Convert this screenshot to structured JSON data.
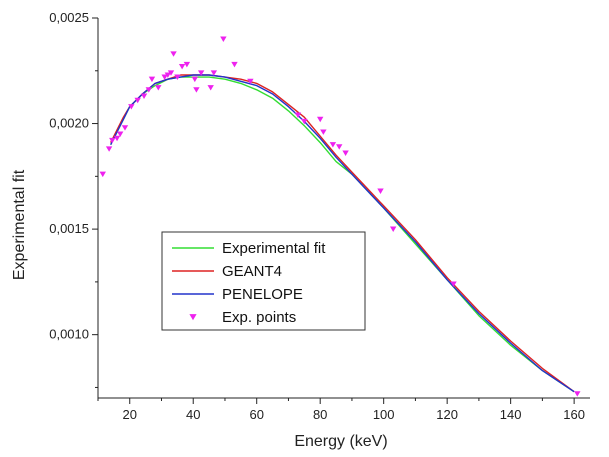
{
  "chart_data": {
    "type": "line",
    "title": "",
    "xlabel": "Energy (keV)",
    "ylabel": "Experimental fit",
    "xlim": [
      10,
      165
    ],
    "ylim": [
      0.0007,
      0.0025
    ],
    "x_ticks": [
      20,
      40,
      60,
      80,
      100,
      120,
      140,
      160
    ],
    "x_tick_labels": [
      "20",
      "40",
      "60",
      "80",
      "100",
      "120",
      "140",
      "160"
    ],
    "y_ticks": [
      0.001,
      0.0015,
      0.002,
      0.0025
    ],
    "y_tick_labels": [
      "0,0010",
      "0,0015",
      "0,0020",
      "0,0025"
    ],
    "grid": false,
    "legend_position": "center-left",
    "series": [
      {
        "name": "Experimental fit",
        "kind": "line",
        "color": "#33dd33",
        "points": [
          [
            14,
            0.0019
          ],
          [
            16,
            0.00196
          ],
          [
            18,
            0.00202
          ],
          [
            20,
            0.00208
          ],
          [
            24,
            0.00214
          ],
          [
            28,
            0.00218
          ],
          [
            32,
            0.00221
          ],
          [
            36,
            0.00222
          ],
          [
            40,
            0.00222
          ],
          [
            45,
            0.00222
          ],
          [
            50,
            0.00221
          ],
          [
            55,
            0.00219
          ],
          [
            60,
            0.00216
          ],
          [
            65,
            0.00212
          ],
          [
            70,
            0.00206
          ],
          [
            75,
            0.00199
          ],
          [
            80,
            0.00191
          ],
          [
            85,
            0.00182
          ],
          [
            90,
            0.00176
          ],
          [
            95,
            0.00168
          ],
          [
            100,
            0.0016
          ],
          [
            110,
            0.00143
          ],
          [
            120,
            0.00126
          ],
          [
            130,
            0.00109
          ],
          [
            140,
            0.00095
          ],
          [
            150,
            0.00083
          ],
          [
            160,
            0.00073
          ]
        ]
      },
      {
        "name": "GEANT4",
        "kind": "line",
        "color": "#dd2222",
        "points": [
          [
            14,
            0.00191
          ],
          [
            16,
            0.00197
          ],
          [
            18,
            0.00203
          ],
          [
            20,
            0.00208
          ],
          [
            24,
            0.00214
          ],
          [
            28,
            0.00219
          ],
          [
            32,
            0.00221
          ],
          [
            36,
            0.00223
          ],
          [
            40,
            0.00223
          ],
          [
            45,
            0.00223
          ],
          [
            50,
            0.00222
          ],
          [
            55,
            0.00221
          ],
          [
            60,
            0.00219
          ],
          [
            65,
            0.00215
          ],
          [
            70,
            0.00209
          ],
          [
            75,
            0.00203
          ],
          [
            80,
            0.00194
          ],
          [
            85,
            0.00185
          ],
          [
            90,
            0.00177
          ],
          [
            95,
            0.00169
          ],
          [
            100,
            0.00161
          ],
          [
            110,
            0.00145
          ],
          [
            120,
            0.00127
          ],
          [
            130,
            0.00111
          ],
          [
            140,
            0.00097
          ],
          [
            150,
            0.00084
          ],
          [
            160,
            0.00073
          ]
        ]
      },
      {
        "name": "PENELOPE",
        "kind": "line",
        "color": "#2233cc",
        "points": [
          [
            14,
            0.0019
          ],
          [
            16,
            0.00196
          ],
          [
            18,
            0.00202
          ],
          [
            20,
            0.00208
          ],
          [
            24,
            0.00214
          ],
          [
            28,
            0.00219
          ],
          [
            32,
            0.00221
          ],
          [
            36,
            0.00222
          ],
          [
            40,
            0.00223
          ],
          [
            45,
            0.00223
          ],
          [
            50,
            0.00222
          ],
          [
            55,
            0.0022
          ],
          [
            60,
            0.00218
          ],
          [
            65,
            0.00214
          ],
          [
            70,
            0.00208
          ],
          [
            75,
            0.00201
          ],
          [
            80,
            0.00193
          ],
          [
            85,
            0.00184
          ],
          [
            90,
            0.00176
          ],
          [
            95,
            0.00168
          ],
          [
            100,
            0.0016
          ],
          [
            110,
            0.00144
          ],
          [
            120,
            0.00126
          ],
          [
            130,
            0.0011
          ],
          [
            140,
            0.00096
          ],
          [
            150,
            0.00083
          ],
          [
            160,
            0.00073
          ]
        ]
      },
      {
        "name": "Exp. points",
        "kind": "scatter",
        "marker": "triangle-down",
        "color": "#ee22ee",
        "points": [
          [
            11.5,
            0.00176
          ],
          [
            13.5,
            0.00188
          ],
          [
            14.5,
            0.00192
          ],
          [
            16,
            0.00193
          ],
          [
            17,
            0.00195
          ],
          [
            18.5,
            0.00198
          ],
          [
            20.5,
            0.00208
          ],
          [
            22.5,
            0.00211
          ],
          [
            24.5,
            0.00213
          ],
          [
            26,
            0.00216
          ],
          [
            27,
            0.00221
          ],
          [
            29,
            0.00217
          ],
          [
            31,
            0.00222
          ],
          [
            32,
            0.00223
          ],
          [
            33,
            0.00224
          ],
          [
            33.8,
            0.00233
          ],
          [
            35,
            0.00222
          ],
          [
            36.5,
            0.00227
          ],
          [
            38,
            0.00228
          ],
          [
            40.5,
            0.00221
          ],
          [
            41,
            0.00216
          ],
          [
            42.5,
            0.00224
          ],
          [
            45.5,
            0.00217
          ],
          [
            46.5,
            0.00224
          ],
          [
            49.5,
            0.0024
          ],
          [
            53,
            0.00228
          ],
          [
            58,
            0.0022
          ],
          [
            73,
            0.00204
          ],
          [
            75,
            0.00201
          ],
          [
            80,
            0.00202
          ],
          [
            81,
            0.00196
          ],
          [
            84,
            0.0019
          ],
          [
            86,
            0.00189
          ],
          [
            88,
            0.00186
          ],
          [
            99,
            0.00168
          ],
          [
            103,
            0.0015
          ],
          [
            122,
            0.00124
          ],
          [
            161,
            0.00072
          ]
        ]
      }
    ]
  }
}
